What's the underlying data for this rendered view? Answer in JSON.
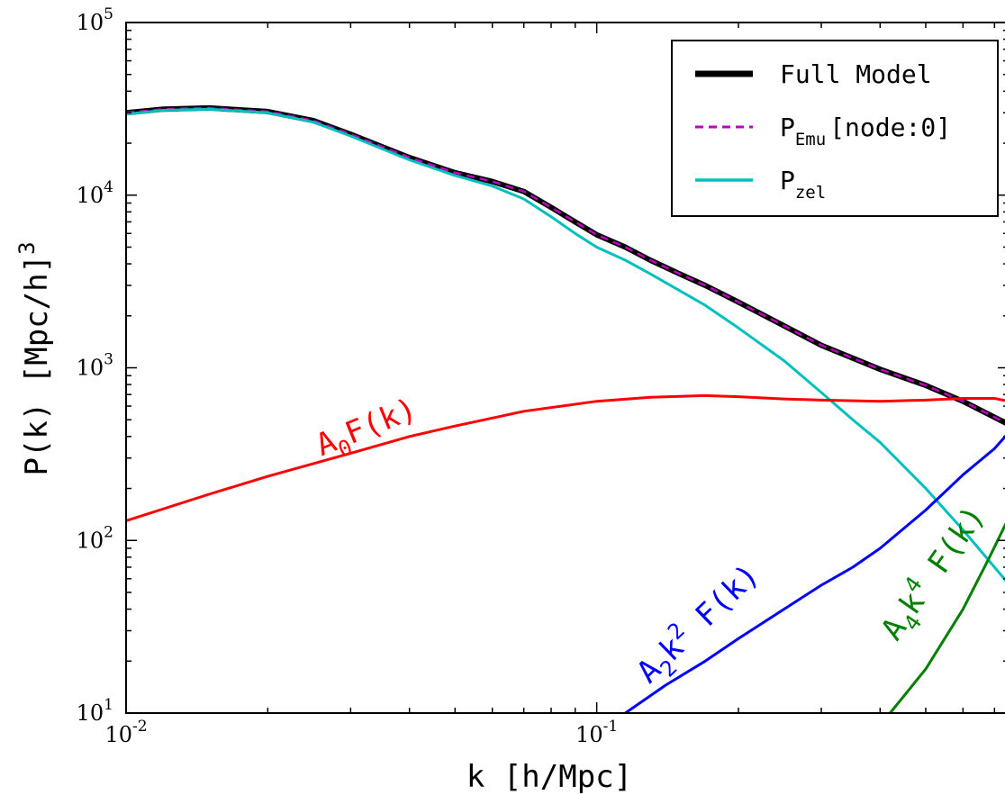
{
  "chart_data": {
    "type": "line",
    "xscale": "log",
    "yscale": "log",
    "xlim": [
      0.01,
      0.75
    ],
    "ylim": [
      10,
      100000
    ],
    "xlabel": "k [h/Mpc]",
    "ylabel": "P(k) [Mpc/h]^3",
    "x_ticks": [
      {
        "value": 0.01,
        "base": "10",
        "exp": "-2"
      },
      {
        "value": 0.1,
        "base": "10",
        "exp": "-1"
      }
    ],
    "y_ticks": [
      {
        "value": 10,
        "base": "10",
        "exp": "1"
      },
      {
        "value": 100,
        "base": "10",
        "exp": "2"
      },
      {
        "value": 1000,
        "base": "10",
        "exp": "3"
      },
      {
        "value": 10000,
        "base": "10",
        "exp": "4"
      },
      {
        "value": 100000,
        "base": "10",
        "exp": "5"
      }
    ],
    "legend_position": "top-right",
    "legend": [
      {
        "label": "Full Model",
        "sub": "",
        "tail": "",
        "color": "#000000",
        "style": "solid-thick"
      },
      {
        "label": "P",
        "sub": "Emu",
        "tail": "[node:0]",
        "color": "#bf00bf",
        "style": "dashed"
      },
      {
        "label": "P",
        "sub": "zel",
        "tail": "",
        "color": "#00bfbf",
        "style": "solid"
      }
    ],
    "annotations": [
      {
        "series": "A0",
        "parts": [
          "A",
          "0",
          "F(k)"
        ],
        "x": 0.033,
        "y": 400,
        "angle": -22,
        "color": "#ff0000"
      },
      {
        "series": "A2",
        "parts": [
          "A",
          "2",
          "k",
          "2",
          " F(k)"
        ],
        "x": 0.17,
        "y": 30,
        "angle": -44,
        "color": "#0000ff"
      },
      {
        "series": "A4",
        "parts": [
          "A",
          "4",
          "k",
          "4",
          " F(k)"
        ],
        "x": 0.54,
        "y": 60,
        "angle": -55,
        "color": "#007f00"
      }
    ],
    "series": [
      {
        "key": "full",
        "color": "#000000",
        "width": 6,
        "dash": "",
        "x": [
          0.01,
          0.012,
          0.015,
          0.02,
          0.025,
          0.03,
          0.04,
          0.05,
          0.06,
          0.07,
          0.08,
          0.09,
          0.1,
          0.115,
          0.13,
          0.15,
          0.17,
          0.2,
          0.25,
          0.3,
          0.4,
          0.5,
          0.6,
          0.75
        ],
        "y": [
          30000,
          31500,
          32000,
          30500,
          27000,
          22500,
          16500,
          13500,
          12000,
          10500,
          8500,
          7000,
          5900,
          5000,
          4200,
          3500,
          3000,
          2400,
          1750,
          1350,
          980,
          790,
          640,
          470
        ]
      },
      {
        "key": "emu",
        "color": "#bf00bf",
        "width": 2.5,
        "dash": "9,6",
        "x": [
          0.01,
          0.012,
          0.015,
          0.02,
          0.025,
          0.03,
          0.04,
          0.05,
          0.06,
          0.07,
          0.08,
          0.09,
          0.1,
          0.115,
          0.13,
          0.15,
          0.17,
          0.2,
          0.25,
          0.3,
          0.4,
          0.5,
          0.6,
          0.75
        ],
        "y": [
          30000,
          31500,
          32000,
          30500,
          27000,
          22500,
          16500,
          13500,
          12000,
          10500,
          8500,
          7000,
          5900,
          5000,
          4200,
          3500,
          3000,
          2400,
          1750,
          1350,
          980,
          790,
          640,
          470
        ]
      },
      {
        "key": "zel",
        "color": "#00bfbf",
        "width": 3,
        "dash": "",
        "x": [
          0.01,
          0.012,
          0.015,
          0.02,
          0.025,
          0.03,
          0.04,
          0.05,
          0.06,
          0.07,
          0.08,
          0.09,
          0.1,
          0.115,
          0.13,
          0.15,
          0.17,
          0.2,
          0.25,
          0.3,
          0.35,
          0.4,
          0.5,
          0.6,
          0.75
        ],
        "y": [
          29500,
          31000,
          31500,
          30000,
          26500,
          22000,
          16000,
          13000,
          11300,
          9500,
          7500,
          6000,
          5000,
          4200,
          3500,
          2800,
          2300,
          1700,
          1100,
          720,
          500,
          370,
          200,
          115,
          56
        ]
      },
      {
        "key": "A0",
        "color": "#ff0000",
        "width": 3,
        "dash": "",
        "x": [
          0.01,
          0.015,
          0.02,
          0.03,
          0.04,
          0.05,
          0.07,
          0.1,
          0.13,
          0.17,
          0.2,
          0.25,
          0.3,
          0.4,
          0.5,
          0.6,
          0.7,
          0.75
        ],
        "y": [
          130,
          185,
          235,
          320,
          400,
          460,
          560,
          640,
          675,
          690,
          680,
          660,
          650,
          640,
          650,
          665,
          665,
          640
        ]
      },
      {
        "key": "A2",
        "color": "#0000ff",
        "width": 3,
        "dash": "",
        "x": [
          0.115,
          0.14,
          0.17,
          0.2,
          0.25,
          0.3,
          0.35,
          0.4,
          0.5,
          0.6,
          0.7,
          0.75
        ],
        "y": [
          10,
          14.5,
          20,
          27,
          40,
          55,
          70,
          90,
          150,
          240,
          340,
          420
        ]
      },
      {
        "key": "A4",
        "color": "#007f00",
        "width": 3,
        "dash": "",
        "x": [
          0.42,
          0.5,
          0.6,
          0.68,
          0.75
        ],
        "y": [
          10,
          18,
          40,
          78,
          135
        ]
      }
    ]
  }
}
